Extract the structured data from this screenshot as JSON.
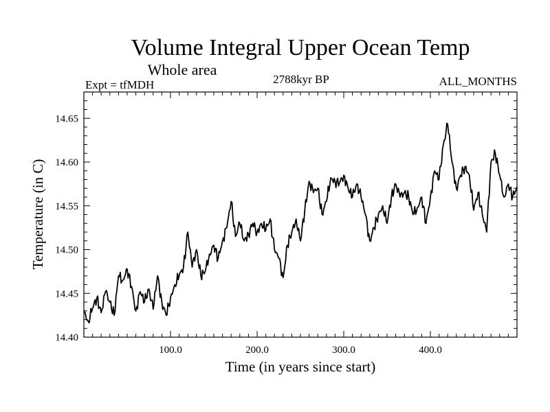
{
  "chart_data": {
    "type": "line",
    "title": "Volume Integral Upper Ocean Temp",
    "subtitle": "Whole area",
    "expt_label": "Expt = tfMDH",
    "period_label": "2788kyr BP",
    "months_label": "ALL_MONTHS",
    "xlabel": "Time (in years since start)",
    "ylabel": "Temperature (in C)",
    "xlim": [
      0,
      500
    ],
    "ylim": [
      14.4,
      14.68
    ],
    "xticks": [
      {
        "value": 100,
        "label": "100.0"
      },
      {
        "value": 200,
        "label": "200.0"
      },
      {
        "value": 300,
        "label": "300.0"
      },
      {
        "value": 400,
        "label": "400.0"
      }
    ],
    "yticks": [
      {
        "value": 14.4,
        "label": "14.40"
      },
      {
        "value": 14.45,
        "label": "14.45"
      },
      {
        "value": 14.5,
        "label": "14.50"
      },
      {
        "value": 14.55,
        "label": "14.55"
      },
      {
        "value": 14.6,
        "label": "14.60"
      },
      {
        "value": 14.65,
        "label": "14.65"
      }
    ],
    "series": [
      {
        "name": "Temperature",
        "color": "#000000",
        "x": [
          0,
          5,
          10,
          15,
          20,
          25,
          30,
          35,
          40,
          45,
          50,
          55,
          60,
          65,
          70,
          75,
          80,
          85,
          90,
          95,
          100,
          105,
          110,
          115,
          120,
          125,
          130,
          135,
          140,
          145,
          150,
          155,
          160,
          165,
          170,
          175,
          180,
          185,
          190,
          195,
          200,
          205,
          210,
          215,
          220,
          225,
          230,
          235,
          240,
          245,
          250,
          255,
          260,
          265,
          270,
          275,
          280,
          285,
          290,
          295,
          300,
          305,
          310,
          315,
          320,
          325,
          330,
          335,
          340,
          345,
          350,
          355,
          360,
          365,
          370,
          375,
          380,
          385,
          390,
          395,
          400,
          405,
          410,
          415,
          420,
          425,
          430,
          435,
          440,
          445,
          450,
          455,
          460,
          465,
          470,
          475,
          480,
          485,
          490,
          495,
          500
        ],
        "values": [
          14.43,
          14.418,
          14.433,
          14.445,
          14.428,
          14.452,
          14.44,
          14.425,
          14.47,
          14.465,
          14.478,
          14.458,
          14.43,
          14.452,
          14.44,
          14.455,
          14.432,
          14.47,
          14.44,
          14.425,
          14.445,
          14.46,
          14.47,
          14.48,
          14.52,
          14.48,
          14.5,
          14.47,
          14.475,
          14.495,
          14.505,
          14.49,
          14.51,
          14.525,
          14.555,
          14.515,
          14.53,
          14.51,
          14.518,
          14.53,
          14.52,
          14.53,
          14.522,
          14.535,
          14.5,
          14.49,
          14.468,
          14.505,
          14.52,
          14.535,
          14.51,
          14.545,
          14.578,
          14.565,
          14.57,
          14.54,
          14.555,
          14.582,
          14.578,
          14.576,
          14.585,
          14.57,
          14.56,
          14.575,
          14.56,
          14.54,
          14.51,
          14.525,
          14.54,
          14.55,
          14.53,
          14.56,
          14.575,
          14.56,
          14.565,
          14.56,
          14.54,
          14.548,
          14.56,
          14.53,
          14.56,
          14.59,
          14.58,
          14.62,
          14.643,
          14.6,
          14.57,
          14.585,
          14.595,
          14.585,
          14.545,
          14.565,
          14.54,
          14.52,
          14.6,
          14.61,
          14.585,
          14.56,
          14.575,
          14.56,
          14.572
        ]
      }
    ]
  }
}
